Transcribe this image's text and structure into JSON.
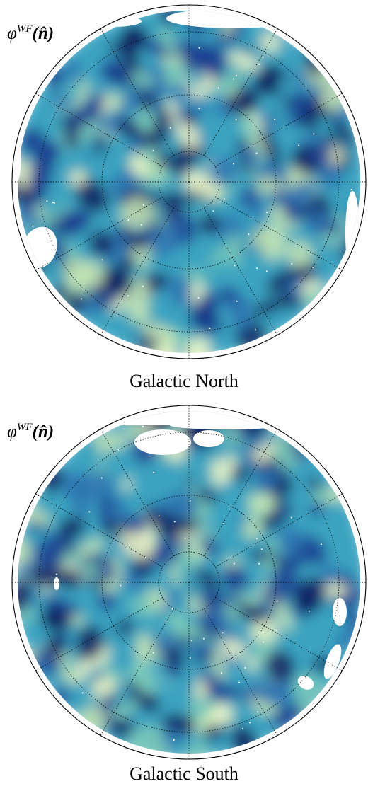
{
  "panels": [
    {
      "map_label": {
        "symbol": "φ",
        "superscript": "WF",
        "argument": "(n̂)"
      },
      "caption": "Galactic North"
    },
    {
      "map_label": {
        "symbol": "φ",
        "superscript": "WF",
        "argument": "(n̂)"
      },
      "caption": "Galactic South"
    }
  ],
  "colormap": [
    "#0d1c5c",
    "#1b3c8e",
    "#2e73b0",
    "#3ba3c0",
    "#7ecbb8",
    "#c9e8b5",
    "#f4f9c8"
  ]
}
